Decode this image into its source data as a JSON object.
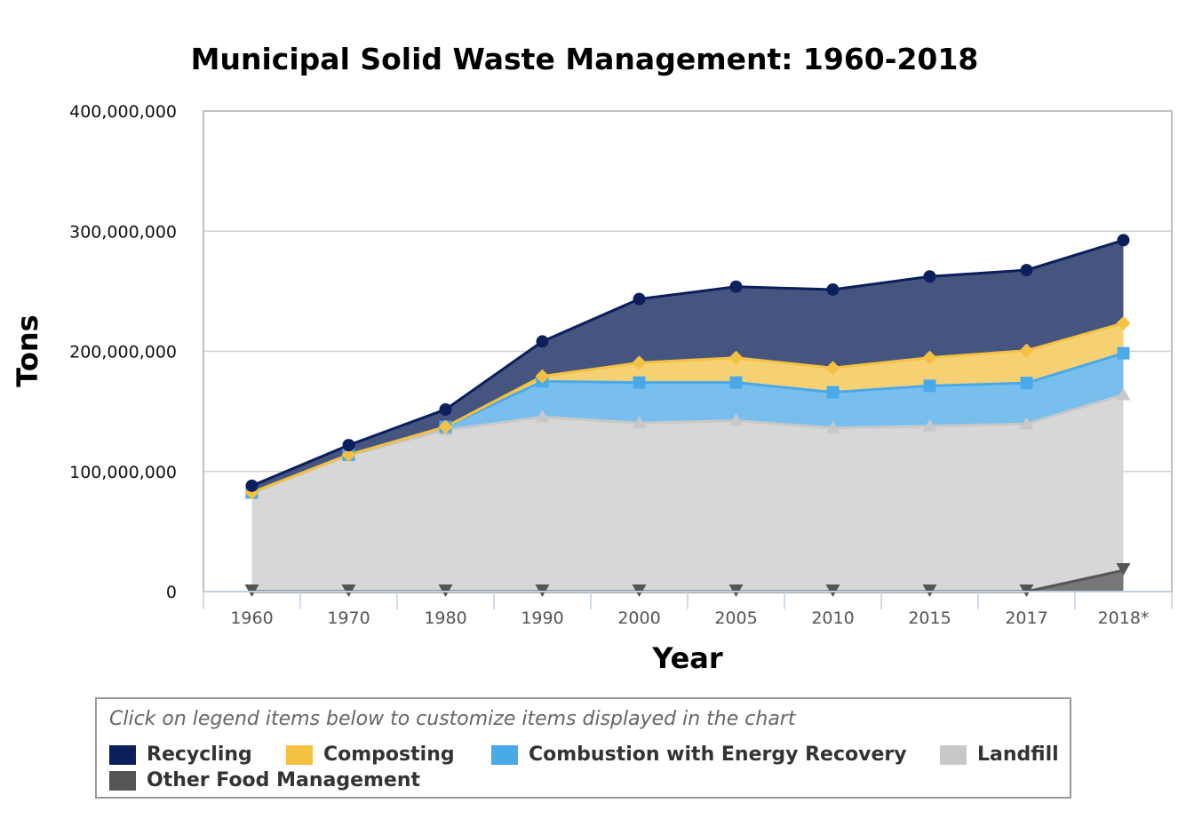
{
  "chart_data": {
    "type": "area",
    "stacked": true,
    "title": "Municipal Solid Waste Management: 1960-2018",
    "xlabel": "Year",
    "ylabel": "Tons",
    "categories": [
      "1960",
      "1970",
      "1980",
      "1990",
      "2000",
      "2005",
      "2010",
      "2015",
      "2017",
      "2018*"
    ],
    "ylim": [
      0,
      400000000
    ],
    "yticks": [
      0,
      100000000,
      200000000,
      300000000,
      400000000
    ],
    "ytick_labels": [
      "0",
      "100,000,000",
      "200,000,000",
      "300,000,000",
      "400,000,000"
    ],
    "grid": true,
    "legend_placement": "bottom",
    "series": [
      {
        "name": "Other Food Management",
        "color": "#555555",
        "fill": "#777777",
        "marker": "triangle-down",
        "values": [
          0,
          0,
          0,
          0,
          0,
          0,
          0,
          0,
          0,
          17700000
        ]
      },
      {
        "name": "Landfill",
        "color": "#c8c8c8",
        "fill": "#d7d7d7",
        "marker": "triangle",
        "values": [
          82500000,
          113500000,
          134400000,
          145300000,
          140300000,
          142300000,
          136200000,
          137700000,
          139600000,
          146100000
        ]
      },
      {
        "name": "Combustion with Energy Recovery",
        "color": "#4aa9e8",
        "fill": "#79bfee",
        "marker": "square",
        "values": [
          0,
          400000,
          2700000,
          29700000,
          33700000,
          31700000,
          29700000,
          33600000,
          34000000,
          34600000
        ]
      },
      {
        "name": "Composting",
        "color": "#f4c143",
        "fill": "#f6d174",
        "marker": "diamond",
        "values": [
          0,
          0,
          0,
          4200000,
          16500000,
          20600000,
          20200000,
          23400000,
          27000000,
          25000000
        ]
      },
      {
        "name": "Recycling",
        "color": "#0b1f5c",
        "fill": "#45557f",
        "marker": "circle",
        "values": [
          5600000,
          8000000,
          14500000,
          29000000,
          53000000,
          59200000,
          65300000,
          67600000,
          67000000,
          69100000
        ]
      }
    ]
  },
  "legend": {
    "hint": "Click on legend items below to customize items displayed in the chart",
    "items": [
      {
        "label": "Recycling",
        "color": "#0b1f5c"
      },
      {
        "label": "Composting",
        "color": "#f4c143"
      },
      {
        "label": "Combustion with Energy Recovery",
        "color": "#4aa9e8"
      },
      {
        "label": "Landfill",
        "color": "#c8c8c8"
      },
      {
        "label": "Other Food Management",
        "color": "#555555"
      }
    ]
  }
}
